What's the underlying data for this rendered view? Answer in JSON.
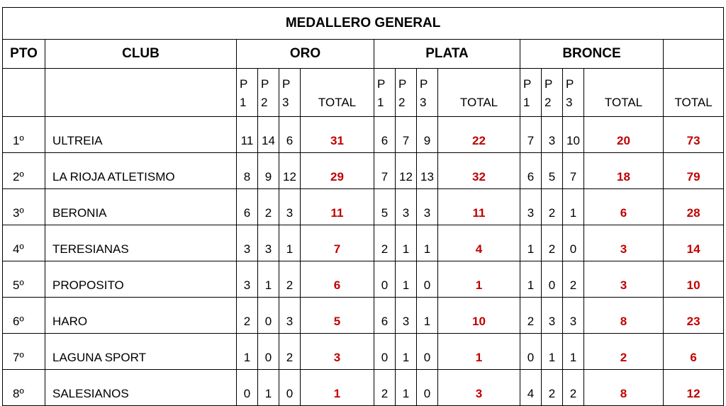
{
  "title": "MEDALLERO GENERAL",
  "headers": [
    "PTO",
    "CLUB",
    "ORO",
    "PLATA",
    "BRONCE"
  ],
  "subheaders": [
    {
      "line1": "P",
      "line2": "1"
    },
    {
      "line1": "P",
      "line2": "2"
    },
    {
      "line1": "P",
      "line2": "3"
    },
    "TOTAL",
    {
      "line1": "P",
      "line2": "1"
    },
    {
      "line1": "P",
      "line2": "2"
    },
    {
      "line1": "P",
      "line2": "3"
    },
    "TOTAL",
    {
      "line1": "P",
      "line2": "1"
    },
    {
      "line1": "P",
      "line2": "2"
    },
    {
      "line1": "P",
      "line2": "3"
    },
    "TOTAL",
    "TOTAL"
  ],
  "rows": [
    {
      "pos": "1º",
      "club": "ULTREIA",
      "oro": [
        11,
        14,
        6,
        31
      ],
      "plata": [
        6,
        7,
        9,
        22
      ],
      "bronce": [
        7,
        3,
        10,
        20
      ],
      "total": 73
    },
    {
      "pos": "2º",
      "club": "LA RIOJA ATLETISMO",
      "oro": [
        8,
        9,
        12,
        29
      ],
      "plata": [
        7,
        12,
        13,
        32
      ],
      "bronce": [
        6,
        5,
        7,
        18
      ],
      "total": 79
    },
    {
      "pos": "3º",
      "club": "BERONIA",
      "oro": [
        6,
        2,
        3,
        11
      ],
      "plata": [
        5,
        3,
        3,
        11
      ],
      "bronce": [
        3,
        2,
        1,
        6
      ],
      "total": 28
    },
    {
      "pos": "4º",
      "club": "TERESIANAS",
      "oro": [
        3,
        3,
        1,
        7
      ],
      "plata": [
        2,
        1,
        1,
        4
      ],
      "bronce": [
        1,
        2,
        0,
        3
      ],
      "total": 14
    },
    {
      "pos": "5º",
      "club": "PROPOSITO",
      "oro": [
        3,
        1,
        2,
        6
      ],
      "plata": [
        0,
        1,
        0,
        1
      ],
      "bronce": [
        1,
        0,
        2,
        3
      ],
      "total": 10
    },
    {
      "pos": "6º",
      "club": "HARO",
      "oro": [
        2,
        0,
        3,
        5
      ],
      "plata": [
        6,
        3,
        1,
        10
      ],
      "bronce": [
        2,
        3,
        3,
        8
      ],
      "total": 23
    },
    {
      "pos": "7º",
      "club": "LAGUNA SPORT",
      "oro": [
        1,
        0,
        2,
        3
      ],
      "plata": [
        0,
        1,
        0,
        1
      ],
      "bronce": [
        0,
        1,
        1,
        2
      ],
      "total": 6
    },
    {
      "pos": "8º",
      "club": "SALESIANOS",
      "oro": [
        0,
        1,
        0,
        1
      ],
      "plata": [
        2,
        1,
        0,
        3
      ],
      "bronce": [
        4,
        2,
        2,
        8
      ],
      "total": 12
    }
  ]
}
